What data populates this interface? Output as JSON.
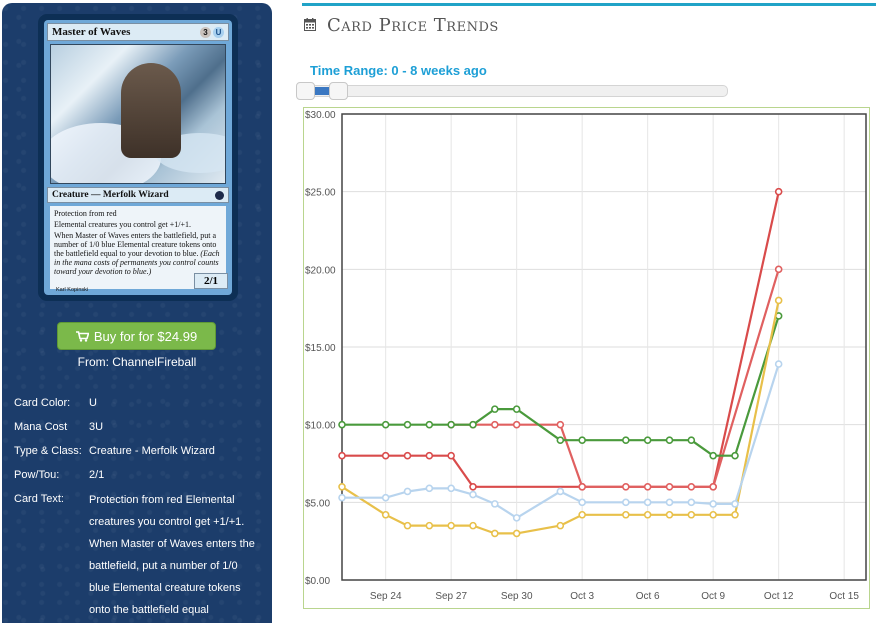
{
  "card": {
    "name": "Master of Waves",
    "mana_cost_symbols": [
      "3",
      "U"
    ],
    "type_line": "Creature — Merfolk Wizard",
    "rules_lines": [
      "Protection from red",
      "Elemental creatures you control get +1/+1.",
      "When Master of Waves enters the battlefield, put a number of 1/0 blue Elemental creature tokens onto the battlefield equal to your devotion to blue."
    ],
    "reminder_text": "(Each in the mana costs of permanents you control counts toward your devotion to blue.)",
    "power_toughness": "2/1",
    "artist": "Karl Kopinski"
  },
  "buy": {
    "label": "Buy for for $24.99",
    "from": "From: ChannelFireball",
    "icon": "cart-icon",
    "color": "#7bb94a"
  },
  "details": [
    {
      "label": "Card Color:",
      "value": "U"
    },
    {
      "label": "Mana Cost",
      "value": "3U"
    },
    {
      "label": "Type & Class:",
      "value": "Creature - Merfolk Wizard"
    },
    {
      "label": "Pow/Tou:",
      "value": "2/1"
    },
    {
      "label": "Card Text:",
      "value": "Protection from red Elemental creatures you control get +1/+1. When Master of Waves enters the battlefield, put a number of 1/0 blue Elemental creature tokens onto the battlefield equal"
    }
  ],
  "header": {
    "title": "Card Price Trends",
    "icon": "calendar-icon",
    "accent": "#20a3c7"
  },
  "time_range": {
    "label": "Time Range: 0 - 8 weeks ago",
    "from_weeks": 0,
    "to_weeks": 8
  },
  "chart_data": {
    "type": "line",
    "x_ticks": [
      "Sep 24",
      "Sep 27",
      "Sep 30",
      "Oct 3",
      "Oct 6",
      "Oct 9",
      "Oct 12",
      "Oct 15"
    ],
    "y_ticks": [
      "$0.00",
      "$5.00",
      "$10.00",
      "$15.00",
      "$20.00",
      "$25.00",
      "$30.00"
    ],
    "xlim": [
      "Sep 22",
      "Oct 16"
    ],
    "ylim": [
      0,
      30
    ],
    "grid": true,
    "series": [
      {
        "color": "#d94b4b",
        "points": [
          [
            "Sep 22",
            8
          ],
          [
            "Sep 24",
            8
          ],
          [
            "Sep 25",
            8
          ],
          [
            "Sep 26",
            8
          ],
          [
            "Sep 27",
            8
          ],
          [
            "Sep 28",
            6
          ],
          [
            "Oct 3",
            6
          ],
          [
            "Oct 9",
            6
          ],
          [
            "Oct 12",
            25
          ]
        ]
      },
      {
        "color": "#e06060",
        "points": [
          [
            "Sep 27",
            10
          ],
          [
            "Sep 28",
            10
          ],
          [
            "Sep 29",
            10
          ],
          [
            "Sep 30",
            10
          ],
          [
            "Oct 2",
            10
          ],
          [
            "Oct 3",
            6
          ],
          [
            "Oct 5",
            6
          ],
          [
            "Oct 6",
            6
          ],
          [
            "Oct 7",
            6
          ],
          [
            "Oct 8",
            6
          ],
          [
            "Oct 9",
            6
          ],
          [
            "Oct 12",
            20
          ]
        ]
      },
      {
        "color": "#4a9a3c",
        "points": [
          [
            "Sep 22",
            10
          ],
          [
            "Sep 24",
            10
          ],
          [
            "Sep 25",
            10
          ],
          [
            "Sep 26",
            10
          ],
          [
            "Sep 27",
            10
          ],
          [
            "Sep 28",
            10
          ],
          [
            "Sep 29",
            11
          ],
          [
            "Sep 30",
            11
          ],
          [
            "Oct 2",
            9
          ],
          [
            "Oct 3",
            9
          ],
          [
            "Oct 5",
            9
          ],
          [
            "Oct 6",
            9
          ],
          [
            "Oct 7",
            9
          ],
          [
            "Oct 8",
            9
          ],
          [
            "Oct 9",
            8
          ],
          [
            "Oct 10",
            8
          ],
          [
            "Oct 12",
            17
          ]
        ]
      },
      {
        "color": "#e8c04a",
        "points": [
          [
            "Sep 22",
            6
          ],
          [
            "Sep 24",
            4.2
          ],
          [
            "Sep 25",
            3.5
          ],
          [
            "Sep 26",
            3.5
          ],
          [
            "Sep 27",
            3.5
          ],
          [
            "Sep 28",
            3.5
          ],
          [
            "Sep 29",
            3
          ],
          [
            "Sep 30",
            3
          ],
          [
            "Oct 2",
            3.5
          ],
          [
            "Oct 3",
            4.2
          ],
          [
            "Oct 5",
            4.2
          ],
          [
            "Oct 6",
            4.2
          ],
          [
            "Oct 7",
            4.2
          ],
          [
            "Oct 8",
            4.2
          ],
          [
            "Oct 9",
            4.2
          ],
          [
            "Oct 10",
            4.2
          ],
          [
            "Oct 12",
            18
          ]
        ]
      },
      {
        "color": "#b8d4ee",
        "points": [
          [
            "Sep 22",
            5.3
          ],
          [
            "Sep 24",
            5.3
          ],
          [
            "Sep 25",
            5.7
          ],
          [
            "Sep 26",
            5.9
          ],
          [
            "Sep 27",
            5.9
          ],
          [
            "Sep 28",
            5.5
          ],
          [
            "Sep 29",
            4.9
          ],
          [
            "Sep 30",
            4
          ],
          [
            "Oct 2",
            5.7
          ],
          [
            "Oct 3",
            5
          ],
          [
            "Oct 5",
            5
          ],
          [
            "Oct 6",
            5
          ],
          [
            "Oct 7",
            5
          ],
          [
            "Oct 8",
            5
          ],
          [
            "Oct 9",
            4.9
          ],
          [
            "Oct 10",
            4.9
          ],
          [
            "Oct 12",
            13.9
          ]
        ]
      }
    ]
  }
}
